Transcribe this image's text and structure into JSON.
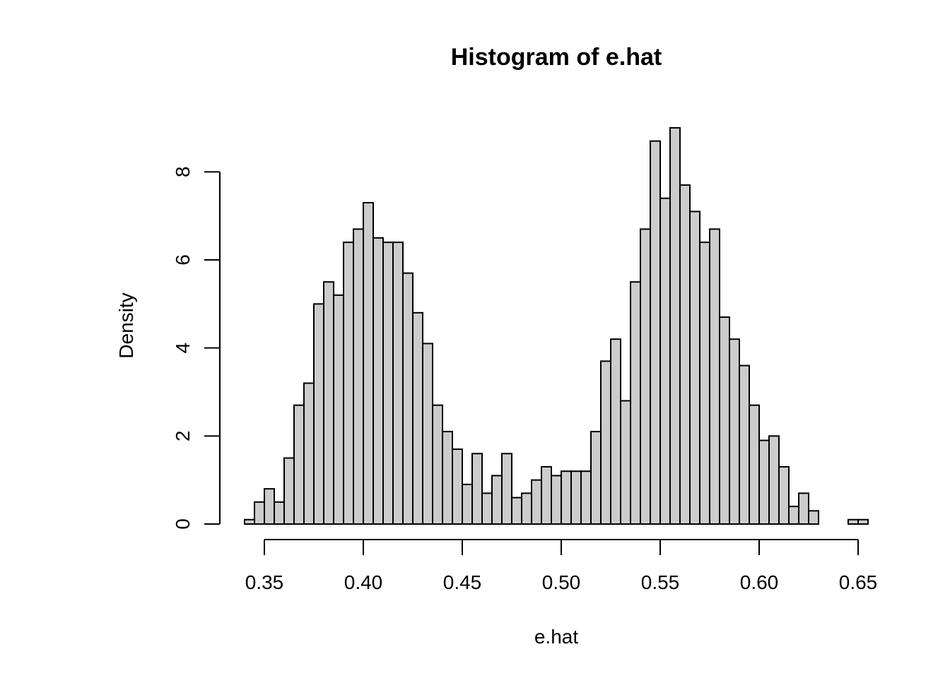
{
  "chart_data": {
    "type": "bar",
    "title": "Histogram of e.hat",
    "xlabel": "e.hat",
    "ylabel": "Density",
    "bin_width": 0.005,
    "bins_start": 0.34,
    "values": [
      0.1,
      0.5,
      0.8,
      0.5,
      1.5,
      2.7,
      3.2,
      5.0,
      5.5,
      5.2,
      6.4,
      6.7,
      7.3,
      6.5,
      6.4,
      6.4,
      5.7,
      4.8,
      4.1,
      2.7,
      2.1,
      1.7,
      0.9,
      1.6,
      0.7,
      1.1,
      1.6,
      0.6,
      0.7,
      1.0,
      1.3,
      1.1,
      1.2,
      1.2,
      1.2,
      2.1,
      3.7,
      4.2,
      2.8,
      5.5,
      6.7,
      8.7,
      7.4,
      9.0,
      7.7,
      7.1,
      6.4,
      6.7,
      4.7,
      4.2,
      3.6,
      2.7,
      1.9,
      2.0,
      1.3,
      0.4,
      0.7,
      0.3,
      0.0,
      0.0,
      0.0,
      0.1,
      0.1
    ],
    "xlim": [
      0.34,
      0.655
    ],
    "ylim": [
      0,
      9.0
    ],
    "x_ticks": [
      0.35,
      0.4,
      0.45,
      0.5,
      0.55,
      0.6,
      0.65
    ],
    "x_tick_labels": [
      "0.35",
      "0.40",
      "0.45",
      "0.50",
      "0.55",
      "0.60",
      "0.65"
    ],
    "y_ticks": [
      0,
      2,
      4,
      6,
      8
    ],
    "y_tick_labels": [
      "0",
      "2",
      "4",
      "6",
      "8"
    ],
    "bar_color": "#cccccc",
    "edge_color": "#000000",
    "grid": false
  }
}
